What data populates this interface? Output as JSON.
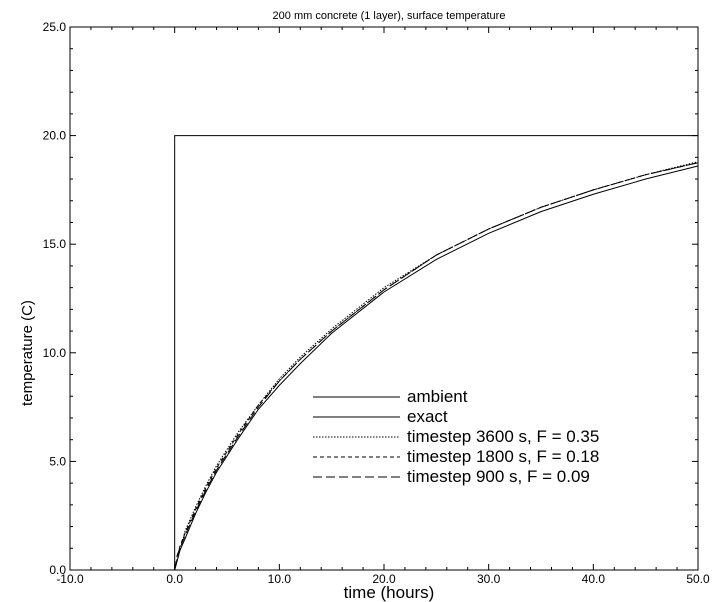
{
  "chart_data": {
    "type": "line",
    "title": "200 mm concrete (1 layer), surface temperature",
    "xlabel": "time (hours)",
    "ylabel": "temperature (C)",
    "xlim": [
      -10,
      50
    ],
    "ylim": [
      0,
      25
    ],
    "x_ticks": [
      "-10.0",
      "0.0",
      "10.0",
      "20.0",
      "30.0",
      "40.0",
      "50.0"
    ],
    "y_ticks": [
      "0.0",
      "5.0",
      "10.0",
      "15.0",
      "20.0",
      "25.0"
    ],
    "legend_position": "bottom-right",
    "series": [
      {
        "name": "ambient",
        "style": "solid",
        "x": [
          -10,
          0,
          0,
          50
        ],
        "y": [
          0,
          0,
          20,
          20
        ]
      },
      {
        "name": "exact",
        "style": "solid",
        "x": [
          0,
          0.5,
          1,
          2,
          3,
          4,
          6,
          8,
          10,
          12,
          15,
          20,
          25,
          30,
          35,
          40,
          45,
          50
        ],
        "y": [
          0,
          0.9,
          1.45,
          2.6,
          3.6,
          4.5,
          6.0,
          7.4,
          8.5,
          9.5,
          10.9,
          12.8,
          14.3,
          15.5,
          16.5,
          17.3,
          18.0,
          18.6
        ]
      },
      {
        "name": "timestep 3600 s, F = 0.35",
        "style": "dotted",
        "x": [
          0,
          1,
          2,
          3,
          4,
          6,
          8,
          10,
          12,
          15,
          20,
          25,
          30,
          35,
          40,
          45,
          50
        ],
        "y": [
          0,
          1.8,
          2.9,
          3.9,
          4.8,
          6.3,
          7.6,
          8.8,
          9.8,
          11.1,
          13.0,
          14.5,
          15.7,
          16.7,
          17.5,
          18.2,
          18.8
        ]
      },
      {
        "name": "timestep 1800 s, F = 0.18",
        "style": "dashed",
        "x": [
          0,
          0.5,
          1,
          2,
          3,
          4,
          6,
          8,
          10,
          12,
          15,
          20,
          25,
          30,
          35,
          40,
          45,
          50
        ],
        "y": [
          0,
          1.1,
          1.7,
          2.8,
          3.8,
          4.7,
          6.2,
          7.6,
          8.7,
          9.7,
          11.0,
          12.9,
          14.5,
          15.7,
          16.7,
          17.5,
          18.2,
          18.75
        ]
      },
      {
        "name": "timestep 900 s, F = 0.09",
        "style": "longdash",
        "x": [
          0,
          0.25,
          0.5,
          1,
          2,
          3,
          4,
          6,
          8,
          10,
          12,
          15,
          20,
          25,
          30,
          35,
          40,
          45,
          50
        ],
        "y": [
          0,
          0.7,
          1.0,
          1.6,
          2.7,
          3.7,
          4.6,
          6.1,
          7.5,
          8.7,
          9.7,
          11.0,
          12.9,
          14.5,
          15.7,
          16.7,
          17.5,
          18.2,
          18.75
        ]
      }
    ]
  }
}
